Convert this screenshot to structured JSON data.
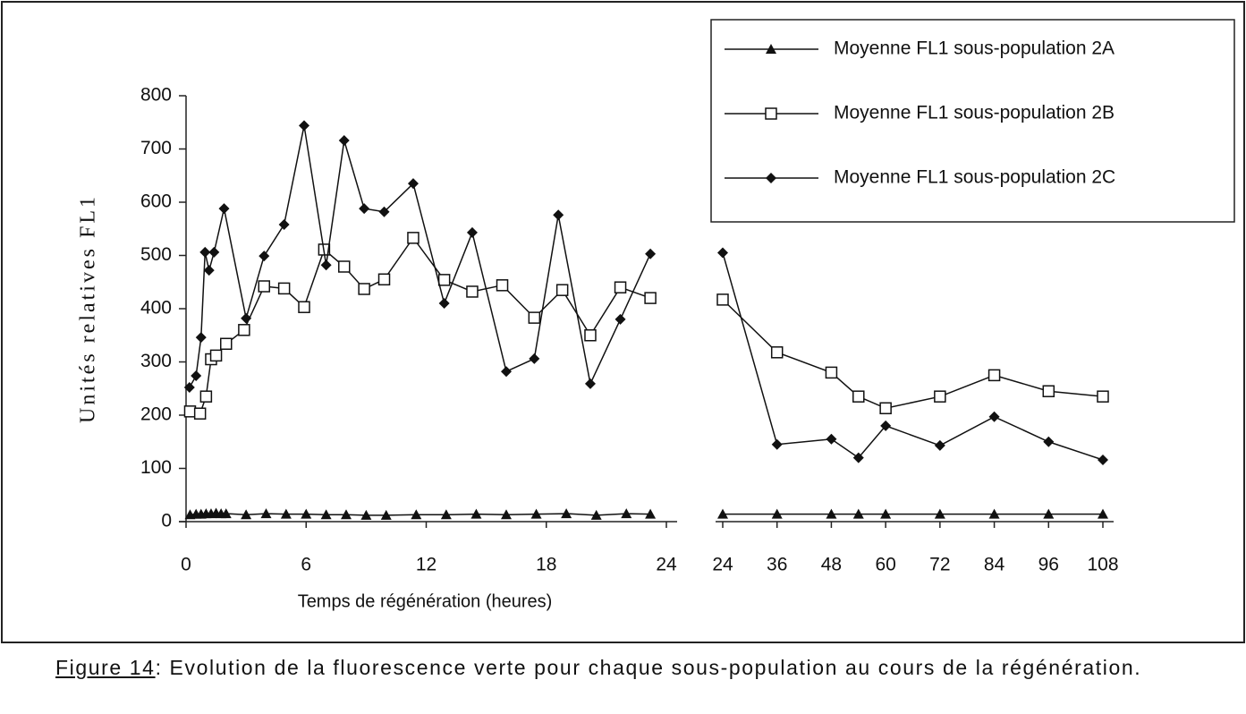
{
  "chart_data": [
    {
      "type": "line",
      "ylabel": "Unités relatives FL1",
      "xlabel": "Temps de régénération (heures)",
      "xlim": [
        0,
        24
      ],
      "xticks": [
        0,
        6,
        12,
        18,
        24
      ],
      "ylim": [
        0,
        800
      ],
      "yticks": [
        0,
        100,
        200,
        300,
        400,
        500,
        600,
        700,
        800
      ],
      "legend": "upper right",
      "series": [
        {
          "name": "Moyenne FL1 sous-population 2A",
          "color": "#111111",
          "marker": "triangle",
          "x": [
            0.2,
            0.5,
            0.75,
            1.0,
            1.25,
            1.5,
            1.75,
            2.0,
            3.0,
            4.0,
            5.0,
            6.0,
            7.0,
            8.0,
            9.0,
            10.0,
            11.5,
            13.0,
            14.5,
            16.0,
            17.5,
            19.0,
            20.5,
            22.0,
            23.2
          ],
          "values": [
            13,
            14,
            14,
            15,
            15,
            16,
            15,
            15,
            13,
            15,
            14,
            14,
            13,
            13,
            12,
            12,
            13,
            13,
            14,
            13,
            14,
            15,
            12,
            15,
            14
          ]
        },
        {
          "name": "Moyenne FL1 sous-population 2B",
          "color": "#111111",
          "marker": "square",
          "x": [
            0.2,
            0.7,
            1.0,
            1.25,
            1.5,
            2.0,
            2.9,
            3.9,
            4.9,
            5.9,
            6.9,
            7.9,
            8.9,
            9.9,
            11.35,
            12.9,
            14.3,
            15.8,
            17.4,
            18.8,
            20.2,
            21.7,
            23.2
          ],
          "values": [
            207,
            203,
            235,
            305,
            312,
            334,
            360,
            442,
            438,
            403,
            511,
            479,
            437,
            455,
            533,
            454,
            432,
            444,
            383,
            435,
            350,
            440,
            420
          ]
        },
        {
          "name": "Moyenne FL1 sous-population 2C",
          "color": "#111111",
          "marker": "diamond",
          "x": [
            0.17,
            0.5,
            0.75,
            0.95,
            1.15,
            1.4,
            1.9,
            3.0,
            3.9,
            4.9,
            5.9,
            7.0,
            7.9,
            8.9,
            9.9,
            11.35,
            12.9,
            14.3,
            16.0,
            17.4,
            18.6,
            20.2,
            21.7,
            23.2
          ],
          "values": [
            252,
            274,
            346,
            506,
            472,
            506,
            588,
            382,
            499,
            558,
            744,
            482,
            716,
            588,
            582,
            635,
            410,
            543,
            282,
            306,
            576,
            259,
            380,
            503
          ]
        }
      ]
    },
    {
      "type": "line",
      "xlim": [
        24,
        108
      ],
      "xticks": [
        24,
        36,
        48,
        60,
        72,
        84,
        96,
        108
      ],
      "ylim": [
        0,
        800
      ],
      "series": [
        {
          "color": "#111111",
          "marker": "triangle",
          "x": [
            24,
            36,
            48,
            54,
            60,
            72,
            84,
            96,
            108
          ],
          "values": [
            14,
            14,
            14,
            14,
            14,
            14,
            14,
            14,
            14
          ]
        },
        {
          "color": "#111111",
          "marker": "square",
          "x": [
            24,
            36,
            48,
            54,
            60,
            72,
            84,
            96,
            108
          ],
          "values": [
            417,
            318,
            280,
            235,
            213,
            235,
            275,
            245,
            235
          ]
        },
        {
          "color": "#111111",
          "marker": "diamond",
          "x": [
            24,
            36,
            48,
            54,
            60,
            72,
            84,
            96,
            108
          ],
          "values": [
            505,
            145,
            155,
            120,
            180,
            143,
            197,
            150,
            116
          ]
        }
      ]
    }
  ],
  "caption": {
    "label": "Figure 14",
    "text": ": Evolution de la fluorescence verte pour chaque sous-population au cours de la régénération."
  }
}
